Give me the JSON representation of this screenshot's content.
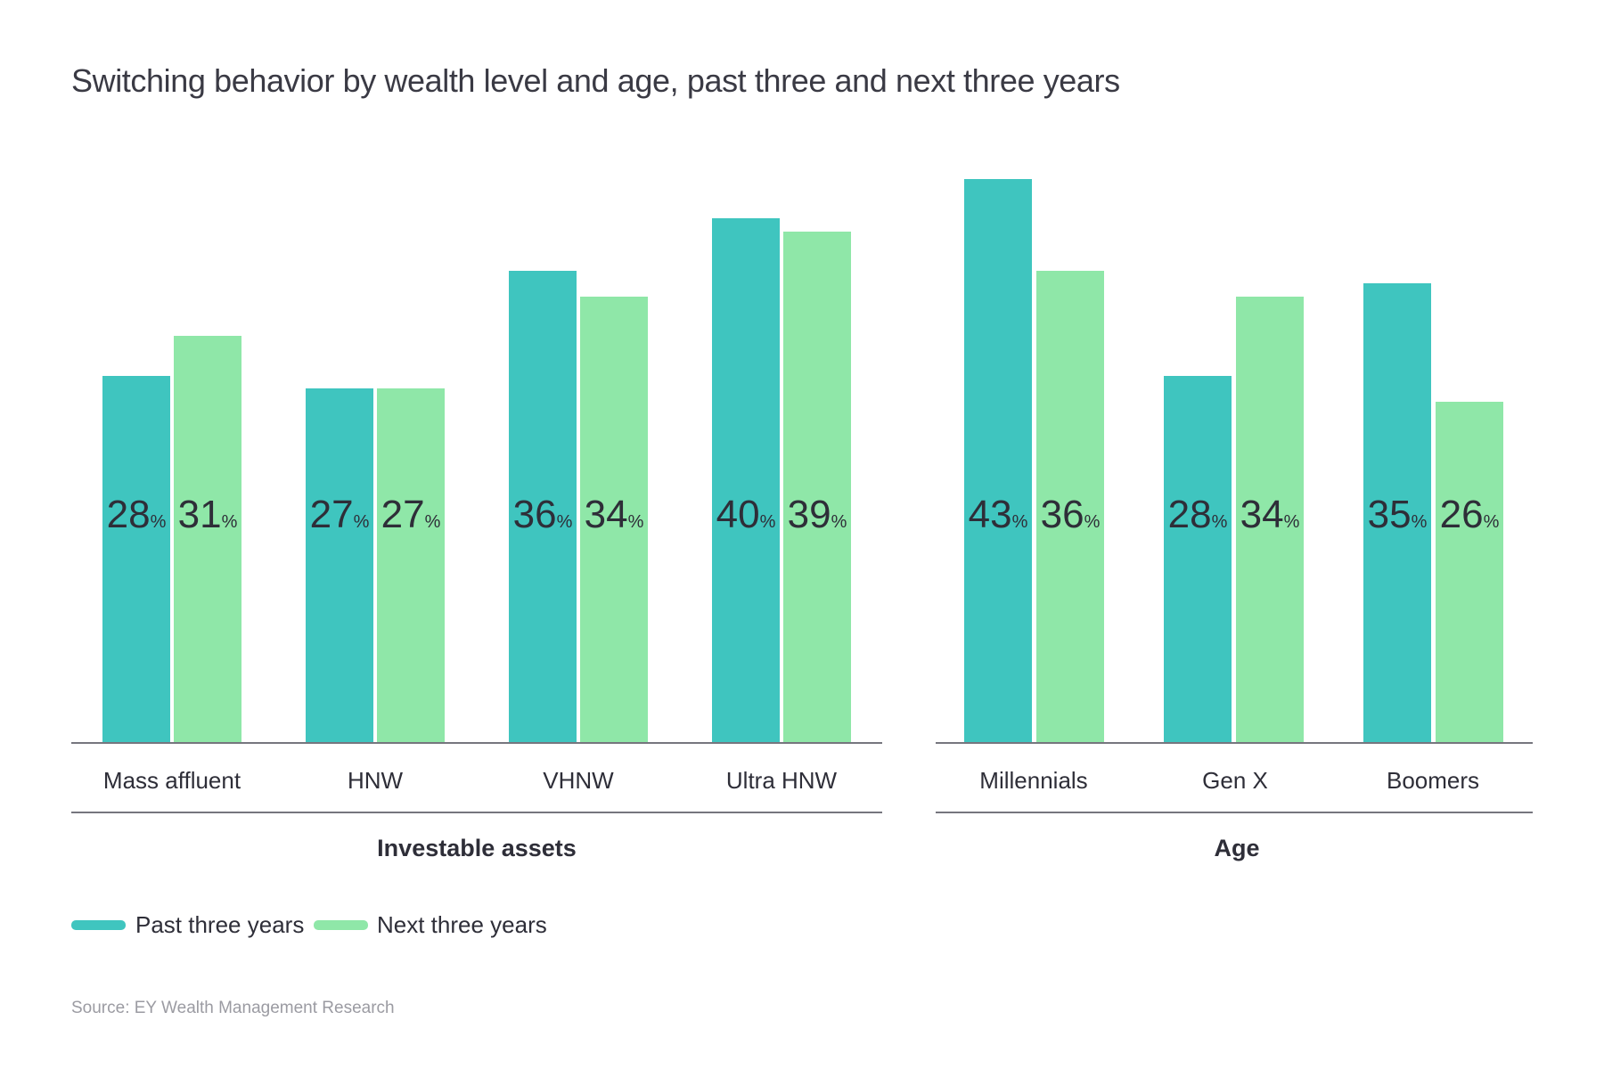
{
  "title": "Switching behavior by wealth level and age, past three and next three years",
  "chart_data": {
    "type": "bar",
    "unit": "%",
    "ylim": [
      0,
      45
    ],
    "grid": false,
    "legend_position": "bottom-left",
    "groups": [
      {
        "label": "Investable assets",
        "categories": [
          "Mass affluent",
          "HNW",
          "VHNW",
          "Ultra HNW"
        ],
        "series": [
          {
            "name": "Past three years",
            "values": [
              28,
              27,
              36,
              40
            ]
          },
          {
            "name": "Next three years",
            "values": [
              31,
              27,
              34,
              39
            ]
          }
        ]
      },
      {
        "label": "Age",
        "categories": [
          "Millennials",
          "Gen X",
          "Boomers"
        ],
        "series": [
          {
            "name": "Past three years",
            "values": [
              43,
              28,
              35
            ]
          },
          {
            "name": "Next three years",
            "values": [
              36,
              34,
              26
            ]
          }
        ]
      }
    ],
    "colors": {
      "past": "#3FC5BF",
      "next": "#8FE7A8"
    }
  },
  "legend": {
    "items": [
      {
        "label": "Past three years",
        "color": "#3FC5BF"
      },
      {
        "label": "Next three years",
        "color": "#8FE7A8"
      }
    ]
  },
  "source": "Source: EY Wealth Management Research"
}
